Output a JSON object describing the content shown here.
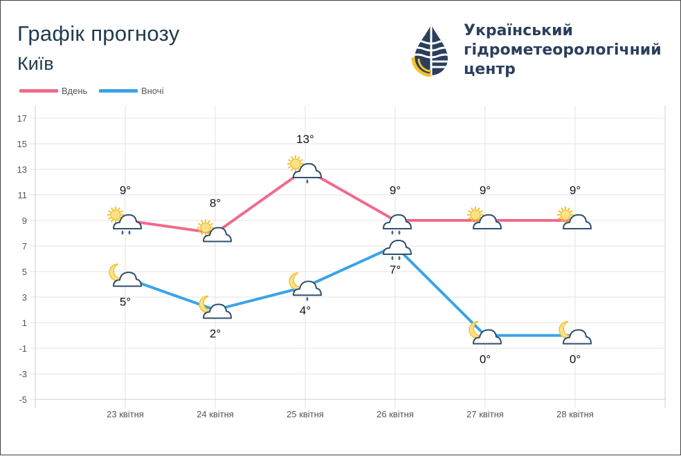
{
  "page": {
    "title": "Графік прогнозу",
    "city": "Київ"
  },
  "logo": {
    "line1": "Український",
    "line2": "гідрометеорологічний",
    "line3": "центр"
  },
  "colors": {
    "day": "#f06a8a",
    "night": "#3aa3e8",
    "grid": "#e3e3e3",
    "axis_text": "#555555",
    "label_text": "#111111",
    "cloud_stroke": "#2f4f6e",
    "sun": "#f2c230",
    "moon": "#f2c230"
  },
  "legend": [
    {
      "label": "Вдень",
      "series": "day"
    },
    {
      "label": "Вночі",
      "series": "night"
    }
  ],
  "chart_data": {
    "type": "line",
    "title": "Графік прогнозу",
    "subtitle": "Київ",
    "categories": [
      "23 квітня",
      "24 квітня",
      "25 квітня",
      "26 квітня",
      "27 квітня",
      "28 квітня"
    ],
    "y_ticks": [
      "17",
      "15",
      "13",
      "11",
      "9",
      "7",
      "5",
      "3",
      "1",
      "-1",
      "-3",
      "-5"
    ],
    "ylim": [
      -5,
      17
    ],
    "grid": true,
    "legend_position": "top-left",
    "series": [
      {
        "key": "day",
        "name": "Вдень",
        "values": [
          9,
          8,
          13,
          9,
          9,
          9
        ],
        "point_labels": [
          "9°",
          "8°",
          "13°",
          "9°",
          "9°",
          "9°"
        ],
        "label_position": "above",
        "icons": [
          "sun-cloud-rain",
          "sun-cloud",
          "sun-cloud-drizzle",
          "cloud-rain",
          "sun-cloud",
          "sun-cloud"
        ]
      },
      {
        "key": "night",
        "name": "Вночі",
        "values": [
          4.5,
          2,
          3.8,
          7,
          0,
          0
        ],
        "point_labels": [
          "5°",
          "2°",
          "4°",
          "7°",
          "0°",
          "0°"
        ],
        "label_position": "below",
        "icons": [
          "moon-cloud",
          "moon-cloud",
          "moon-cloud-drizzle",
          "cloud-rain",
          "moon-cloud",
          "moon-cloud"
        ]
      }
    ]
  }
}
